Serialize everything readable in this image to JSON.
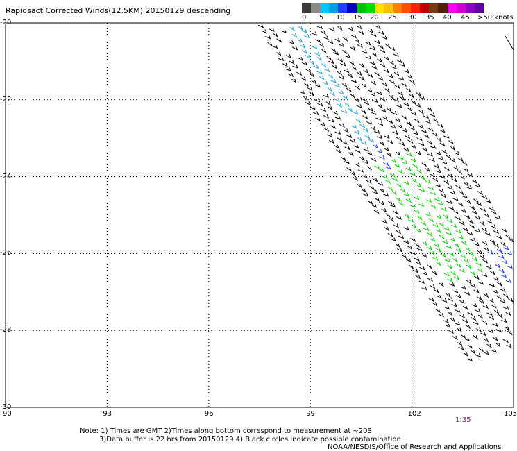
{
  "title": "Rapidsact Corrected Winds(12.5KM) 20150129 descending",
  "colorbar": {
    "colors": [
      "#3a3a3a",
      "#8a8a8a",
      "#00c8ff",
      "#00a0e0",
      "#1e40ff",
      "#0000c0",
      "#00c000",
      "#00e000",
      "#ffe000",
      "#ffc000",
      "#ff8000",
      "#ff5000",
      "#ff2000",
      "#c00000",
      "#7a3a10",
      "#502000",
      "#ff00ff",
      "#d000d0",
      "#9000c0",
      "#6000a0"
    ],
    "labels": [
      "0",
      "5",
      "10",
      "15",
      "20",
      "25",
      "30",
      "35",
      "40",
      "45",
      ">50 knots"
    ]
  },
  "axes": {
    "lat_labels": [
      "-20",
      "-22",
      "-24",
      "-26",
      "-28",
      "-30"
    ],
    "lon_labels": [
      "90",
      "93",
      "96",
      "99",
      "102",
      "105"
    ]
  },
  "time_label": "1:35",
  "notes": [
    "Note: 1) Times are GMT 2)Times along bottom correspond to measurement at ~20S",
    "3)Data buffer is 22 hrs from 20150129 4) Black circles indicate possible contamination",
    "NOAA/NESDIS/Office of Research and Applications"
  ]
}
